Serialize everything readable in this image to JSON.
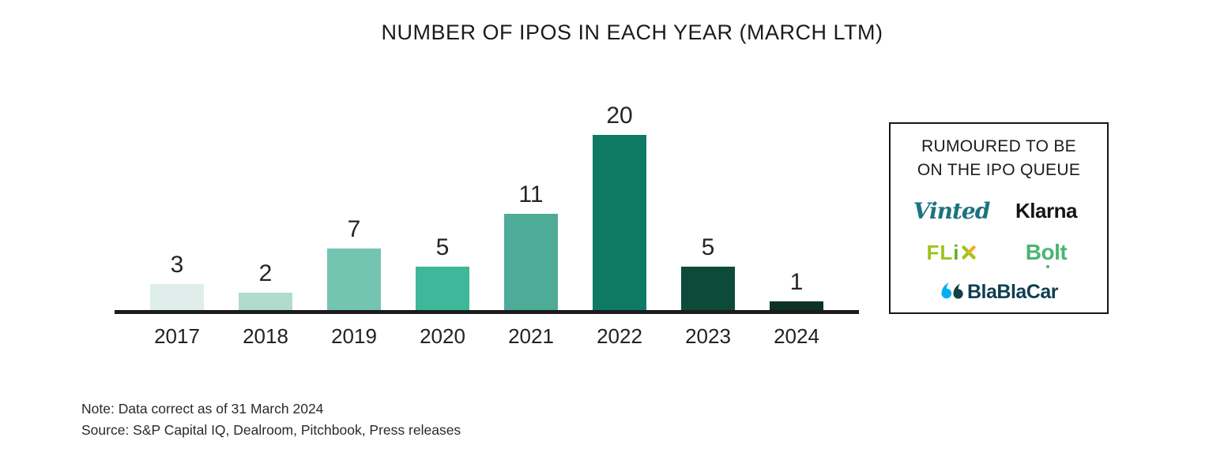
{
  "chart_data": {
    "type": "bar",
    "title": "NUMBER OF IPOS IN EACH YEAR (MARCH LTM)",
    "categories": [
      "2017",
      "2018",
      "2019",
      "2020",
      "2021",
      "2022",
      "2023",
      "2024"
    ],
    "values": [
      3,
      2,
      7,
      5,
      11,
      20,
      5,
      1
    ],
    "bar_colors": [
      "#dfeeea",
      "#afdcce",
      "#74c4b2",
      "#3eb79a",
      "#4dab98",
      "#0e7a64",
      "#0d4a3a",
      "#0e3325"
    ],
    "xlabel": "",
    "ylabel": "",
    "ylim": [
      0,
      20
    ],
    "grid": false,
    "legend": "none",
    "value_labels": true,
    "axis_color": "#1c1c1c"
  },
  "queue_box": {
    "title_line1": "RUMOURED TO BE",
    "title_line2": "ON THE IPO QUEUE",
    "companies": [
      "Vinted",
      "Klarna",
      "FLiX",
      "Bolt",
      "BlaBlaCar"
    ],
    "vinted": {
      "label": "Vinted",
      "color": "#1c7380"
    },
    "klarna": {
      "label": "Klarna",
      "color": "#141417"
    },
    "flix": {
      "name": "FLiX",
      "fl": "FL",
      "i": "i",
      "x": "X",
      "green": "#9dc41b",
      "i_green": "#63ad1c",
      "orange": "#f7a823"
    },
    "bolt": {
      "name": "Bolt",
      "b": "B",
      "o": "o",
      "lt": "lt",
      "color": "#4ab572"
    },
    "blablacar": {
      "label": "BlaBlaCar",
      "text_color": "#0f3e52",
      "bubble_light": "#00aff5",
      "bubble_dark": "#114145"
    }
  },
  "notes": {
    "note": "Note: Data correct as of 31 March 2024",
    "source": "Source: S&P Capital IQ, Dealroom, Pitchbook, Press releases"
  }
}
